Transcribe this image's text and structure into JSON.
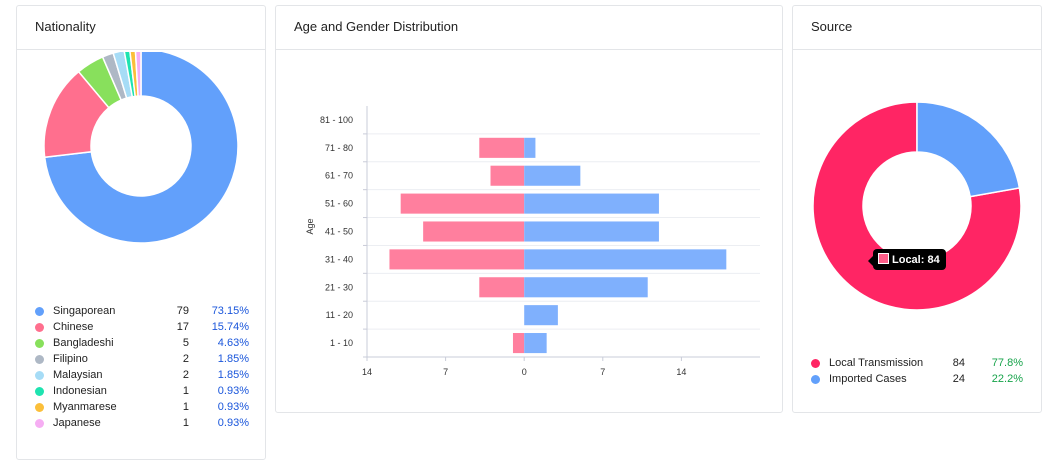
{
  "chart_data": [
    {
      "type": "pie",
      "title": "Nationality",
      "categories": [
        "Singaporean",
        "Chinese",
        "Bangladeshi",
        "Filipino",
        "Malaysian",
        "Indonesian",
        "Myanmarese",
        "Japanese"
      ],
      "values": [
        79,
        17,
        5,
        2,
        2,
        1,
        1,
        1
      ],
      "percents": [
        "73.15%",
        "15.74%",
        "4.63%",
        "1.85%",
        "1.85%",
        "0.93%",
        "0.93%",
        "0.93%"
      ],
      "colors": [
        "#62a0fb",
        "#ff6f8e",
        "#88e05c",
        "#aeb8c5",
        "#a6dcf6",
        "#1ee3b0",
        "#fbbf3a",
        "#f6aef3"
      ]
    },
    {
      "type": "bar",
      "title": "Age and Gender Distribution",
      "ylabel": "Age",
      "categories": [
        "81 - 100",
        "71 - 80",
        "61 - 70",
        "51 - 60",
        "41 - 50",
        "31 - 40",
        "21 - 30",
        "11 - 20",
        "1 - 10"
      ],
      "series": [
        {
          "values": [
            0,
            4,
            3,
            11,
            9,
            12,
            4,
            0,
            1
          ],
          "color": "#ff7f9e"
        },
        {
          "values": [
            0,
            1,
            5,
            12,
            12,
            18,
            11,
            3,
            2
          ],
          "color": "#7fb0fd"
        }
      ],
      "xticks": [
        "14",
        "7",
        "0",
        "7",
        "14"
      ],
      "xlim": [
        -14,
        21
      ]
    },
    {
      "type": "pie",
      "title": "Source",
      "categories": [
        "Local Transmission",
        "Imported Cases"
      ],
      "values": [
        84,
        24
      ],
      "percents": [
        "77.8%",
        "22.2%"
      ],
      "colors": [
        "#ff2564",
        "#62a0fb"
      ]
    }
  ],
  "tooltip": {
    "text": "Local: 84"
  }
}
